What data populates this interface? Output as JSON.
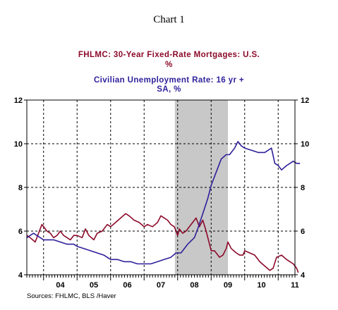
{
  "chart_data": {
    "type": "line",
    "title": "Chart 1",
    "legend": [
      {
        "lines": [
          "FHLMC: 30-Year Fixed-Rate Mortgages: U.S.",
          "%"
        ],
        "color": "#8b0a2a"
      },
      {
        "lines": [
          "Civilian Unemployment Rate: 16 yr +",
          "SA, %"
        ],
        "color": "#2e1f9a"
      }
    ],
    "x_tick_labels": [
      "04",
      "05",
      "06",
      "07",
      "08",
      "09",
      "10",
      "11"
    ],
    "x_range": [
      2003.5,
      2011.5
    ],
    "y_left_ticks": [
      4,
      6,
      8,
      10,
      12
    ],
    "y_right_ticks": [
      4,
      6,
      8,
      10,
      12
    ],
    "ylim": [
      4,
      12
    ],
    "grid": true,
    "recession_shading": {
      "start": 2007.917,
      "end": 2009.5
    },
    "series": [
      {
        "name": "FHLMC: 30-Year Fixed-Rate Mortgages: U.S.",
        "color": "#8b0a2a",
        "points": [
          [
            2003.5,
            5.8
          ],
          [
            2003.6,
            5.7
          ],
          [
            2003.75,
            5.5
          ],
          [
            2003.85,
            5.9
          ],
          [
            2003.95,
            6.3
          ],
          [
            2004.0,
            6.2
          ],
          [
            2004.1,
            6.0
          ],
          [
            2004.2,
            5.9
          ],
          [
            2004.3,
            5.7
          ],
          [
            2004.4,
            5.8
          ],
          [
            2004.5,
            6.0
          ],
          [
            2004.6,
            5.8
          ],
          [
            2004.7,
            5.7
          ],
          [
            2004.8,
            5.6
          ],
          [
            2004.9,
            5.8
          ],
          [
            2005.0,
            5.8
          ],
          [
            2005.15,
            5.7
          ],
          [
            2005.25,
            6.1
          ],
          [
            2005.35,
            5.8
          ],
          [
            2005.5,
            5.6
          ],
          [
            2005.6,
            5.9
          ],
          [
            2005.75,
            6.0
          ],
          [
            2005.9,
            6.3
          ],
          [
            2006.0,
            6.2
          ],
          [
            2006.15,
            6.4
          ],
          [
            2006.3,
            6.6
          ],
          [
            2006.45,
            6.8
          ],
          [
            2006.55,
            6.7
          ],
          [
            2006.7,
            6.5
          ],
          [
            2006.85,
            6.4
          ],
          [
            2007.0,
            6.2
          ],
          [
            2007.1,
            6.3
          ],
          [
            2007.25,
            6.2
          ],
          [
            2007.4,
            6.4
          ],
          [
            2007.5,
            6.7
          ],
          [
            2007.6,
            6.6
          ],
          [
            2007.7,
            6.5
          ],
          [
            2007.8,
            6.3
          ],
          [
            2007.9,
            6.2
          ],
          [
            2008.0,
            5.8
          ],
          [
            2008.05,
            6.1
          ],
          [
            2008.15,
            5.9
          ],
          [
            2008.25,
            6.0
          ],
          [
            2008.35,
            6.2
          ],
          [
            2008.45,
            6.4
          ],
          [
            2008.55,
            6.6
          ],
          [
            2008.65,
            6.2
          ],
          [
            2008.75,
            6.5
          ],
          [
            2008.85,
            6.0
          ],
          [
            2008.95,
            5.4
          ],
          [
            2009.0,
            5.1
          ],
          [
            2009.1,
            5.1
          ],
          [
            2009.25,
            4.8
          ],
          [
            2009.35,
            4.9
          ],
          [
            2009.45,
            5.2
          ],
          [
            2009.5,
            5.5
          ],
          [
            2009.6,
            5.2
          ],
          [
            2009.75,
            5.0
          ],
          [
            2009.85,
            4.9
          ],
          [
            2009.95,
            4.9
          ],
          [
            2010.0,
            5.1
          ],
          [
            2010.15,
            5.0
          ],
          [
            2010.3,
            4.9
          ],
          [
            2010.45,
            4.6
          ],
          [
            2010.6,
            4.4
          ],
          [
            2010.75,
            4.2
          ],
          [
            2010.85,
            4.3
          ],
          [
            2010.95,
            4.8
          ],
          [
            2011.1,
            4.9
          ],
          [
            2011.25,
            4.7
          ],
          [
            2011.35,
            4.6
          ],
          [
            2011.45,
            4.5
          ],
          [
            2011.55,
            4.3
          ],
          [
            2011.6,
            4.1
          ]
        ]
      },
      {
        "name": "Civilian Unemployment Rate: 16 yr + SA, %",
        "color": "#2e1f9a",
        "points": [
          [
            2003.5,
            5.7
          ],
          [
            2003.7,
            5.9
          ],
          [
            2003.9,
            5.7
          ],
          [
            2004.0,
            5.6
          ],
          [
            2004.3,
            5.6
          ],
          [
            2004.5,
            5.5
          ],
          [
            2004.7,
            5.4
          ],
          [
            2004.9,
            5.4
          ],
          [
            2005.0,
            5.3
          ],
          [
            2005.2,
            5.2
          ],
          [
            2005.4,
            5.1
          ],
          [
            2005.6,
            5.0
          ],
          [
            2005.8,
            4.9
          ],
          [
            2006.0,
            4.7
          ],
          [
            2006.2,
            4.7
          ],
          [
            2006.4,
            4.6
          ],
          [
            2006.6,
            4.6
          ],
          [
            2006.8,
            4.5
          ],
          [
            2007.0,
            4.5
          ],
          [
            2007.2,
            4.5
          ],
          [
            2007.4,
            4.6
          ],
          [
            2007.6,
            4.7
          ],
          [
            2007.8,
            4.8
          ],
          [
            2007.95,
            5.0
          ],
          [
            2008.1,
            5.0
          ],
          [
            2008.3,
            5.4
          ],
          [
            2008.5,
            5.7
          ],
          [
            2008.6,
            6.1
          ],
          [
            2008.75,
            6.8
          ],
          [
            2008.9,
            7.5
          ],
          [
            2009.0,
            8.1
          ],
          [
            2009.15,
            8.7
          ],
          [
            2009.3,
            9.3
          ],
          [
            2009.45,
            9.5
          ],
          [
            2009.55,
            9.5
          ],
          [
            2009.7,
            9.8
          ],
          [
            2009.8,
            10.1
          ],
          [
            2009.9,
            9.9
          ],
          [
            2010.0,
            9.8
          ],
          [
            2010.2,
            9.7
          ],
          [
            2010.4,
            9.6
          ],
          [
            2010.6,
            9.6
          ],
          [
            2010.8,
            9.8
          ],
          [
            2010.9,
            9.1
          ],
          [
            2011.0,
            9.0
          ],
          [
            2011.1,
            8.8
          ],
          [
            2011.25,
            9.0
          ],
          [
            2011.35,
            9.1
          ],
          [
            2011.45,
            9.2
          ],
          [
            2011.55,
            9.1
          ],
          [
            2011.65,
            9.1
          ]
        ]
      }
    ]
  },
  "source_text": "Sources:  FHLMC, BLS /Haver"
}
